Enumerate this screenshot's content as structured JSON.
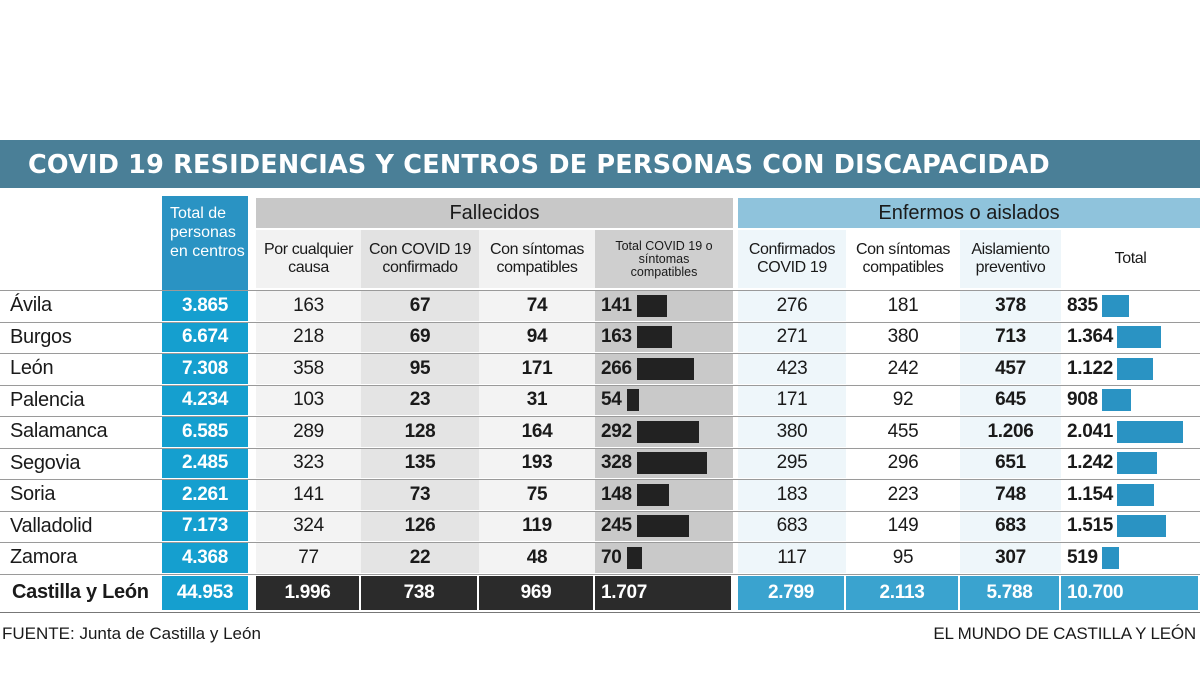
{
  "title": "COVID 19 RESIDENCIAS Y CENTROS DE PERSONAS CON DISCAPACIDAD",
  "headers": {
    "total_lines": [
      "Total de",
      "personas",
      "en centros"
    ],
    "fallecidos": "Fallecidos",
    "enfermos": "Enfermos o aislados",
    "cols": [
      [
        "Por cualquier",
        "causa"
      ],
      [
        "Con COVID 19",
        "confirmado"
      ],
      [
        "Con síntomas",
        "compatibles"
      ],
      [
        "Total COVID 19 o",
        "síntomas",
        "compatibles"
      ],
      [
        "Confirmados",
        "COVID 19"
      ],
      [
        "Con síntomas",
        "compatibles"
      ],
      [
        "Aislamiento",
        "preventivo"
      ],
      [
        "Total"
      ]
    ]
  },
  "rows": [
    {
      "provincia": "Ávila",
      "total": "3.865",
      "cualquier": "163",
      "covid": "67",
      "sintomas": "74",
      "total_fall": "141",
      "confirmados": "276",
      "con_sintomas": "181",
      "aislamiento": "378",
      "total_enf": "835"
    },
    {
      "provincia": "Burgos",
      "total": "6.674",
      "cualquier": "218",
      "covid": "69",
      "sintomas": "94",
      "total_fall": "163",
      "confirmados": "271",
      "con_sintomas": "380",
      "aislamiento": "713",
      "total_enf": "1.364"
    },
    {
      "provincia": "León",
      "total": "7.308",
      "cualquier": "358",
      "covid": "95",
      "sintomas": "171",
      "total_fall": "266",
      "confirmados": "423",
      "con_sintomas": "242",
      "aislamiento": "457",
      "total_enf": "1.122"
    },
    {
      "provincia": "Palencia",
      "total": "4.234",
      "cualquier": "103",
      "covid": "23",
      "sintomas": "31",
      "total_fall": "54",
      "confirmados": "171",
      "con_sintomas": "92",
      "aislamiento": "645",
      "total_enf": "908"
    },
    {
      "provincia": "Salamanca",
      "total": "6.585",
      "cualquier": "289",
      "covid": "128",
      "sintomas": "164",
      "total_fall": "292",
      "confirmados": "380",
      "con_sintomas": "455",
      "aislamiento": "1.206",
      "total_enf": "2.041"
    },
    {
      "provincia": "Segovia",
      "total": "2.485",
      "cualquier": "323",
      "covid": "135",
      "sintomas": "193",
      "total_fall": "328",
      "confirmados": "295",
      "con_sintomas": "296",
      "aislamiento": "651",
      "total_enf": "1.242"
    },
    {
      "provincia": "Soria",
      "total": "2.261",
      "cualquier": "141",
      "covid": "73",
      "sintomas": "75",
      "total_fall": "148",
      "confirmados": "183",
      "con_sintomas": "223",
      "aislamiento": "748",
      "total_enf": "1.154"
    },
    {
      "provincia": "Valladolid",
      "total": "7.173",
      "cualquier": "324",
      "covid": "126",
      "sintomas": "119",
      "total_fall": "245",
      "confirmados": "683",
      "con_sintomas": "149",
      "aislamiento": "683",
      "total_enf": "1.515"
    },
    {
      "provincia": "Zamora",
      "total": "4.368",
      "cualquier": "77",
      "covid": "22",
      "sintomas": "48",
      "total_fall": "70",
      "confirmados": "117",
      "con_sintomas": "95",
      "aislamiento": "307",
      "total_enf": "519"
    }
  ],
  "totals": {
    "provincia": "Castilla y León",
    "total": "44.953",
    "cualquier": "1.996",
    "covid": "738",
    "sintomas": "969",
    "total_fall": "1.707",
    "confirmados": "2.799",
    "con_sintomas": "2.113",
    "aislamiento": "5.788",
    "total_enf": "10.700"
  },
  "source": "FUENTE:  Junta de Castilla y León",
  "credit": "EL MUNDO DE CASTILLA Y LEÓN",
  "colors": {
    "banner": "#4a7f97",
    "total_column": "#2a93c3",
    "dark_bar": "#222222",
    "blue_bar": "#2a93c3",
    "fallecidos_header": "#c8c8c8",
    "enfermos_header": "#8fc3dc"
  },
  "chart_data": {
    "type": "table",
    "title": "COVID 19 RESIDENCIAS Y CENTROS DE PERSONAS CON DISCAPACIDAD",
    "categories": [
      "Ávila",
      "Burgos",
      "León",
      "Palencia",
      "Salamanca",
      "Segovia",
      "Soria",
      "Valladolid",
      "Zamora"
    ],
    "series": [
      {
        "name": "Total de personas en centros",
        "values": [
          3865,
          6674,
          7308,
          4234,
          6585,
          2485,
          2261,
          7173,
          4368
        ]
      },
      {
        "name": "Fallecidos - Por cualquier causa",
        "values": [
          163,
          218,
          358,
          103,
          289,
          323,
          141,
          324,
          77
        ]
      },
      {
        "name": "Fallecidos - Con COVID 19 confirmado",
        "values": [
          67,
          69,
          95,
          23,
          128,
          135,
          73,
          126,
          22
        ]
      },
      {
        "name": "Fallecidos - Con síntomas compatibles",
        "values": [
          74,
          94,
          171,
          31,
          164,
          193,
          75,
          119,
          48
        ]
      },
      {
        "name": "Fallecidos - Total COVID 19 o síntomas compatibles",
        "values": [
          141,
          163,
          266,
          54,
          292,
          328,
          148,
          245,
          70
        ]
      },
      {
        "name": "Enfermos o aislados - Confirmados COVID 19",
        "values": [
          276,
          271,
          423,
          171,
          380,
          295,
          183,
          683,
          117
        ]
      },
      {
        "name": "Enfermos o aislados - Con síntomas compatibles",
        "values": [
          181,
          380,
          242,
          92,
          455,
          296,
          223,
          149,
          95
        ]
      },
      {
        "name": "Enfermos o aislados - Aislamiento preventivo",
        "values": [
          378,
          713,
          457,
          645,
          1206,
          651,
          748,
          683,
          307
        ]
      },
      {
        "name": "Enfermos o aislados - Total",
        "values": [
          835,
          1364,
          1122,
          908,
          2041,
          1242,
          1154,
          1515,
          519
        ]
      }
    ],
    "totals": {
      "Castilla y León": [
        44953,
        1996,
        738,
        969,
        1707,
        2799,
        2113,
        5788,
        10700
      ]
    }
  }
}
